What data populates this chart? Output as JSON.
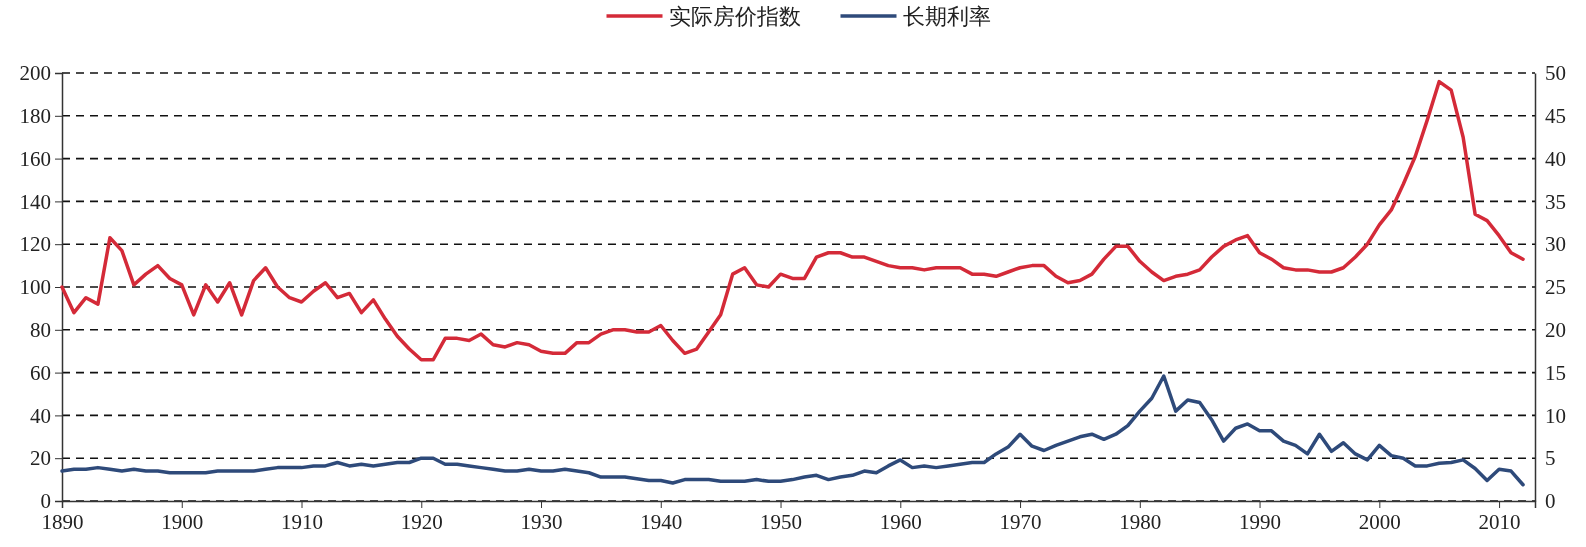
{
  "chart_data": {
    "type": "line",
    "xlim": [
      1890,
      2013
    ],
    "xticks": [
      1890,
      1900,
      1910,
      1920,
      1930,
      1940,
      1950,
      1960,
      1970,
      1980,
      1990,
      2000,
      2010
    ],
    "ylim": [
      0,
      200
    ],
    "yticks": [
      0,
      20,
      40,
      60,
      80,
      100,
      120,
      140,
      160,
      180,
      200
    ],
    "y2lim": [
      0,
      50
    ],
    "y2ticks": [
      0,
      5,
      10,
      15,
      20,
      25,
      30,
      35,
      40,
      45,
      50
    ],
    "grid": "y",
    "legend": "top",
    "line_style": "solid",
    "marker": "none",
    "x": [
      1890,
      1891,
      1892,
      1893,
      1894,
      1895,
      1896,
      1897,
      1898,
      1899,
      1900,
      1901,
      1902,
      1903,
      1904,
      1905,
      1906,
      1907,
      1908,
      1909,
      1910,
      1911,
      1912,
      1913,
      1914,
      1915,
      1916,
      1917,
      1918,
      1919,
      1920,
      1921,
      1922,
      1923,
      1924,
      1925,
      1926,
      1927,
      1928,
      1929,
      1930,
      1931,
      1932,
      1933,
      1934,
      1935,
      1936,
      1937,
      1938,
      1939,
      1940,
      1941,
      1942,
      1943,
      1944,
      1945,
      1946,
      1947,
      1948,
      1949,
      1950,
      1951,
      1952,
      1953,
      1954,
      1955,
      1956,
      1957,
      1958,
      1959,
      1960,
      1961,
      1962,
      1963,
      1964,
      1965,
      1966,
      1967,
      1968,
      1969,
      1970,
      1971,
      1972,
      1973,
      1974,
      1975,
      1976,
      1977,
      1978,
      1979,
      1980,
      1981,
      1982,
      1983,
      1984,
      1985,
      1986,
      1987,
      1988,
      1989,
      1990,
      1991,
      1992,
      1993,
      1994,
      1995,
      1996,
      1997,
      1998,
      1999,
      2000,
      2001,
      2002,
      2003,
      2004,
      2005,
      2006,
      2007,
      2008,
      2009,
      2010,
      2011,
      2012
    ],
    "series": [
      {
        "name": "实际房价指数",
        "color": "#d42a38",
        "values": [
          100,
          88,
          95,
          92,
          123,
          117,
          101,
          106,
          110,
          104,
          101,
          87,
          101,
          93,
          102,
          87,
          103,
          109,
          100,
          95,
          93,
          98,
          102,
          95,
          97,
          88,
          94,
          85,
          77,
          71,
          66,
          66,
          76,
          76,
          75,
          78,
          73,
          72,
          74,
          73,
          70,
          69,
          69,
          74,
          74,
          78,
          80,
          80,
          79,
          79,
          82,
          75,
          69,
          71,
          79,
          87,
          106,
          109,
          101,
          100,
          106,
          104,
          104,
          114,
          116,
          116,
          114,
          114,
          112,
          110,
          109,
          109,
          108,
          109,
          109,
          109,
          106,
          106,
          105,
          107,
          109,
          110,
          110,
          105,
          102,
          103,
          106,
          113,
          119,
          119,
          112,
          107,
          103,
          105,
          106,
          108,
          114,
          119,
          122,
          124,
          116,
          113,
          109,
          108,
          108,
          107,
          107,
          109,
          114,
          120,
          129,
          136,
          148,
          161,
          178,
          196,
          192,
          170,
          134,
          131,
          124,
          116,
          113
        ]
      },
      {
        "name": "长期利率",
        "color": "#2e4a7a",
        "axis": "y2",
        "values": [
          3.5,
          3.7,
          3.7,
          3.9,
          3.7,
          3.5,
          3.7,
          3.5,
          3.5,
          3.3,
          3.3,
          3.3,
          3.3,
          3.5,
          3.5,
          3.5,
          3.5,
          3.7,
          3.9,
          3.9,
          3.9,
          4.1,
          4.1,
          4.5,
          4.1,
          4.3,
          4.1,
          4.3,
          4.5,
          4.5,
          5,
          5,
          4.3,
          4.3,
          4.1,
          3.9,
          3.7,
          3.5,
          3.5,
          3.7,
          3.5,
          3.5,
          3.7,
          3.5,
          3.3,
          2.8,
          2.8,
          2.8,
          2.6,
          2.4,
          2.4,
          2.1,
          2.5,
          2.5,
          2.5,
          2.3,
          2.3,
          2.3,
          2.5,
          2.3,
          2.3,
          2.5,
          2.8,
          3,
          2.5,
          2.8,
          3,
          3.5,
          3.3,
          4.1,
          4.8,
          3.9,
          4.1,
          3.9,
          4.1,
          4.3,
          4.5,
          4.5,
          5.5,
          6.3,
          7.8,
          6.4,
          5.9,
          6.5,
          7,
          7.5,
          7.8,
          7.2,
          7.8,
          8.8,
          10.5,
          12,
          14.6,
          10.5,
          11.8,
          11.5,
          9.5,
          7,
          8.5,
          9,
          8.2,
          8.2,
          7,
          6.5,
          5.5,
          7.8,
          5.8,
          6.8,
          5.5,
          4.8,
          6.5,
          5.3,
          5,
          4.1,
          4.1,
          4.4,
          4.5,
          4.8,
          3.8,
          2.4,
          3.7,
          3.5,
          1.9
        ]
      }
    ]
  }
}
